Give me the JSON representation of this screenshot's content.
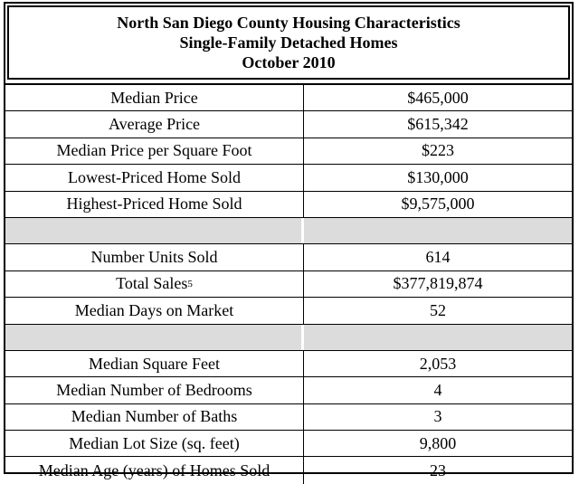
{
  "title": {
    "line1": "North San Diego County Housing Characteristics",
    "line2": "Single-Family Detached Homes",
    "line3": "October 2010"
  },
  "rows": [
    {
      "label": "Median Price",
      "value": "$465,000"
    },
    {
      "label": "Average Price",
      "value": "$615,342"
    },
    {
      "label": "Median Price per Square Foot",
      "value": "$223"
    },
    {
      "label": "Lowest-Priced Home Sold",
      "value": "$130,000"
    },
    {
      "label": "Highest-Priced Home Sold",
      "value": "$9,575,000"
    },
    {
      "spacer": true
    },
    {
      "label": "Number Units Sold",
      "value": "614"
    },
    {
      "label": "Total Sales",
      "sup": "5",
      "value": "$377,819,874"
    },
    {
      "label": "Median Days on Market",
      "value": "52"
    },
    {
      "spacer": true
    },
    {
      "label": "Median Square Feet",
      "value": "2,053"
    },
    {
      "label": "Median Number of Bedrooms",
      "value": "4"
    },
    {
      "label": "Median Number of Baths",
      "value": "3"
    },
    {
      "label": "Median Lot Size (sq. feet)",
      "value": "9,800"
    },
    {
      "label": "Median Age (years) of Homes Sold",
      "value": "23"
    }
  ]
}
